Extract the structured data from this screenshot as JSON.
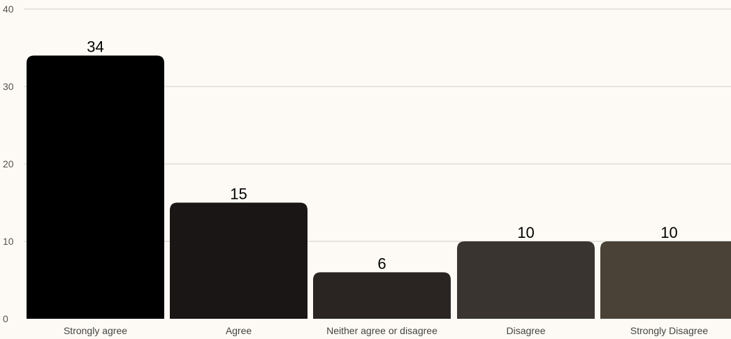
{
  "chart_data": {
    "type": "bar",
    "title": "",
    "xlabel": "",
    "ylabel": "",
    "categories": [
      "Strongly agree",
      "Agree",
      "Neither agree or disagree",
      "Disagree",
      "Strongly Disagree"
    ],
    "values": [
      34,
      15,
      6,
      10,
      10
    ],
    "data_labels": [
      "34",
      "15",
      "6",
      "10",
      "10"
    ],
    "ylim": [
      0,
      40
    ],
    "yticks": [
      "0",
      "10",
      "20",
      "30",
      "40"
    ],
    "grid": true,
    "legend": "none",
    "colors": [
      "#000000",
      "#1a1616",
      "#2a2422",
      "#3a3430",
      "#4a4236"
    ],
    "background": "#fdfaf5"
  }
}
